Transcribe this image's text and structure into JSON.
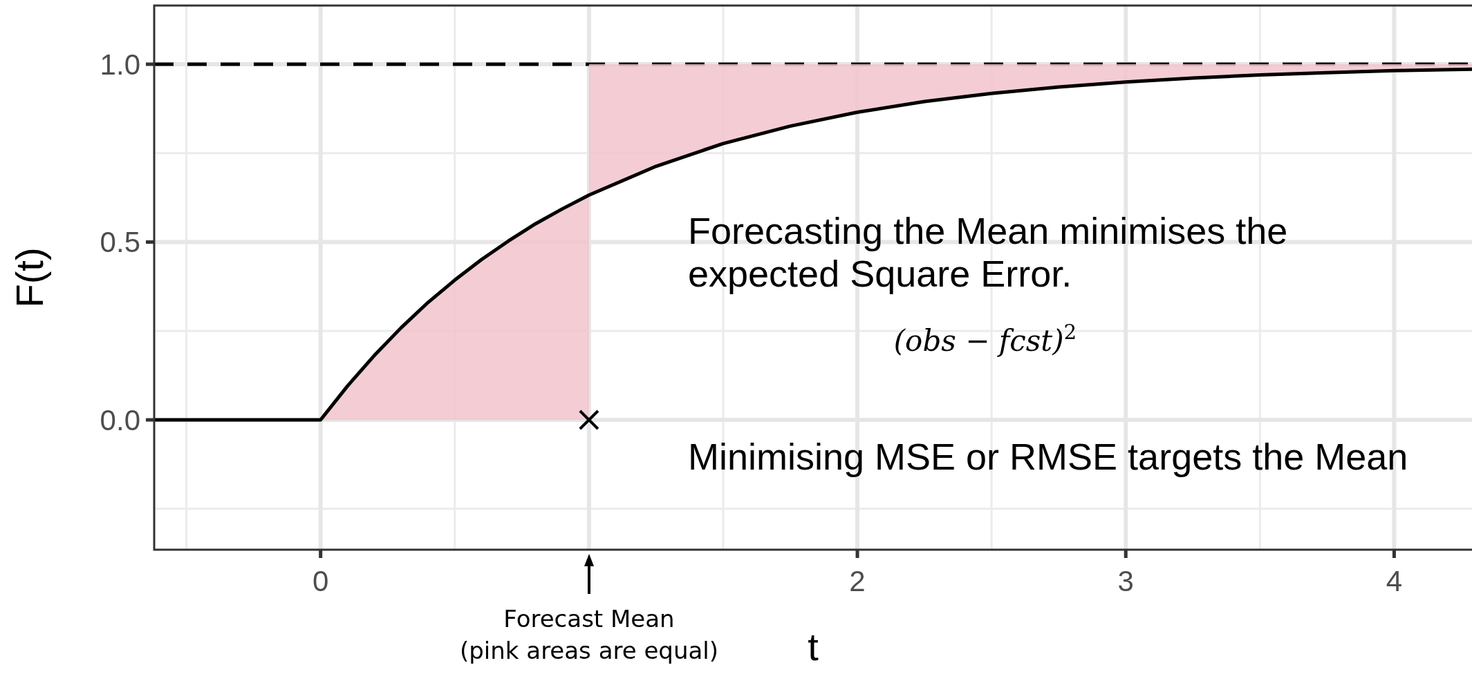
{
  "chart_data": {
    "type": "line",
    "xlabel": "t",
    "ylabel": "F(t)",
    "xlim": [
      -0.62,
      4.29
    ],
    "ylim": [
      -0.365,
      1.165
    ],
    "xticks": [
      0,
      {
        "value": 1,
        "label": null
      },
      2,
      3,
      4
    ],
    "yticks": [
      {
        "value": 0,
        "label": "0.0"
      },
      {
        "value": 0.5,
        "label": "0.5"
      },
      {
        "value": 1,
        "label": "1.0"
      }
    ],
    "grid": true,
    "series": [
      {
        "type": "area",
        "color": "#f2c4cc",
        "x": [
          0,
          0.1,
          0.2,
          0.3,
          0.4,
          0.5,
          0.6,
          0.7,
          0.8,
          0.9,
          1
        ],
        "values": [
          0,
          0.095,
          0.181,
          0.259,
          0.33,
          0.393,
          0.451,
          0.503,
          0.551,
          0.593,
          0.632
        ]
      },
      {
        "type": "line",
        "color": "#000000",
        "x": [
          -0.62,
          0,
          0.1,
          0.2,
          0.3,
          0.4,
          0.5,
          0.6,
          0.7,
          0.8,
          0.9,
          1,
          1.25,
          1.5,
          1.75,
          2,
          2.25,
          2.5,
          2.75,
          3,
          3.25,
          3.5,
          3.75,
          4,
          4.29
        ],
        "values": [
          0,
          0,
          0.095,
          0.181,
          0.259,
          0.33,
          0.393,
          0.451,
          0.503,
          0.551,
          0.593,
          0.632,
          0.713,
          0.777,
          0.826,
          0.865,
          0.895,
          0.918,
          0.936,
          0.95,
          0.961,
          0.97,
          0.976,
          0.982,
          0.986
        ],
        "lower": [
          null,
          null,
          null,
          null,
          null,
          null,
          null,
          null,
          null,
          null,
          null,
          0.632,
          0.713,
          0.777,
          0.826,
          0.865,
          0.895,
          0.918,
          0.936,
          0.95,
          0.961,
          0.97,
          0.976,
          0.982,
          0.986
        ],
        "upper": [
          null,
          null,
          null,
          null,
          null,
          null,
          null,
          null,
          null,
          null,
          null,
          1,
          1,
          1,
          1,
          1,
          1,
          1,
          1,
          1,
          1,
          1,
          1,
          1,
          1
        ]
      },
      {
        "type": "scatter",
        "color": "#000000",
        "marker": "cross",
        "x": [
          1
        ],
        "values": [
          0
        ]
      }
    ],
    "ref_lines": [
      {
        "axis": "y",
        "value": 1,
        "color": "#000000",
        "line_style": "dashed"
      }
    ],
    "annotations": [
      "Forecasting the Mean minimises the\nexpected Square Error.",
      "(obs − fcst)$^{2}$",
      "Minimising MSE or RMSE targets the Mean",
      "Forecast Mean\n(pink areas are equal)"
    ]
  }
}
